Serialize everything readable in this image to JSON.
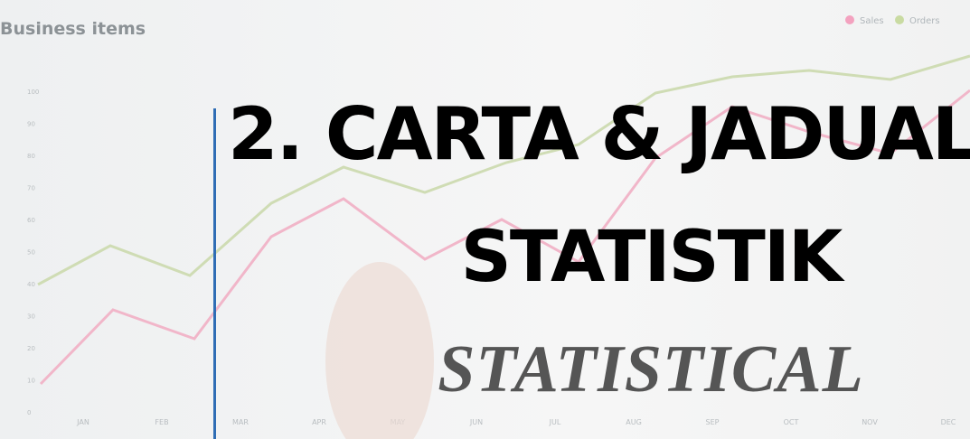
{
  "background": {
    "title": "Business items",
    "legend": [
      "Sales",
      "Orders"
    ],
    "yticks": [
      "100",
      "90",
      "80",
      "70",
      "60",
      "50",
      "40",
      "30",
      "20",
      "10",
      "0"
    ],
    "months": [
      "JAN",
      "FEB",
      "MAR",
      "APR",
      "MAY",
      "JUN",
      "JUL",
      "AUG",
      "SEP",
      "OCT",
      "NOV",
      "DEC"
    ]
  },
  "heading": {
    "line1": "2. CARTA & JADUAL",
    "line2": "STATISTIK",
    "line3": "STATISTICAL"
  }
}
